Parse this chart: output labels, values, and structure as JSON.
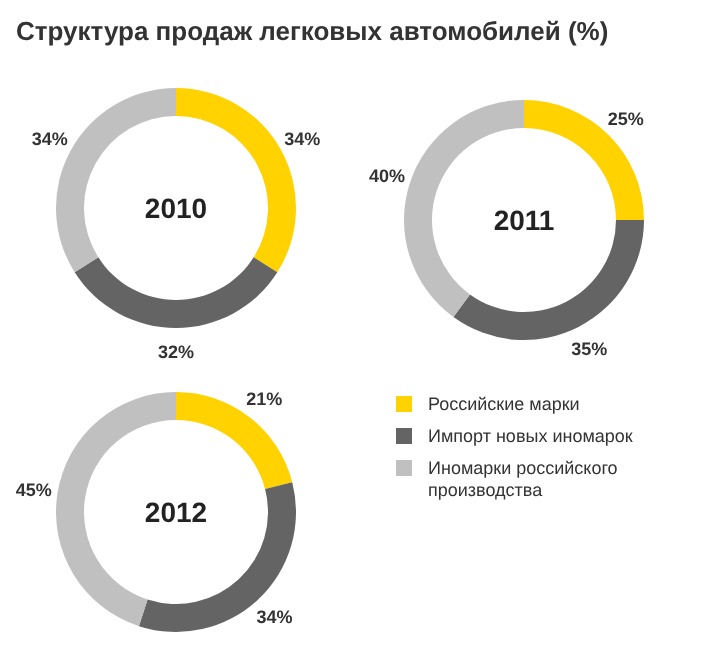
{
  "chart_data": [
    {
      "type": "donut",
      "title": "Структура продаж легковых автомобилей (%)",
      "subtitle": "2010",
      "categories": [
        null,
        null,
        null
      ],
      "values": [
        34,
        32,
        34
      ],
      "value_labels": [
        "34%",
        "32%",
        "34%"
      ],
      "colors": [
        "#ffd200",
        "#646464",
        "#c0c0c0"
      ],
      "legend": false
    },
    {
      "type": "donut",
      "subtitle": "2011",
      "categories": [
        null,
        null,
        null
      ],
      "values": [
        25,
        35,
        40
      ],
      "value_labels": [
        "25%",
        "35%",
        "40%"
      ],
      "colors": [
        "#ffd200",
        "#646464",
        "#c0c0c0"
      ],
      "legend": false
    },
    {
      "type": "donut",
      "subtitle": "2012",
      "categories": [
        "Российские марки",
        "Импорт новых иномарок",
        "Иномарки российского производства"
      ],
      "values": [
        21,
        34,
        45
      ],
      "value_labels": [
        "21%",
        "34%",
        "45%"
      ],
      "colors": [
        "#ffd200",
        "#646464",
        "#c0c0c0"
      ],
      "legend": "right"
    }
  ]
}
